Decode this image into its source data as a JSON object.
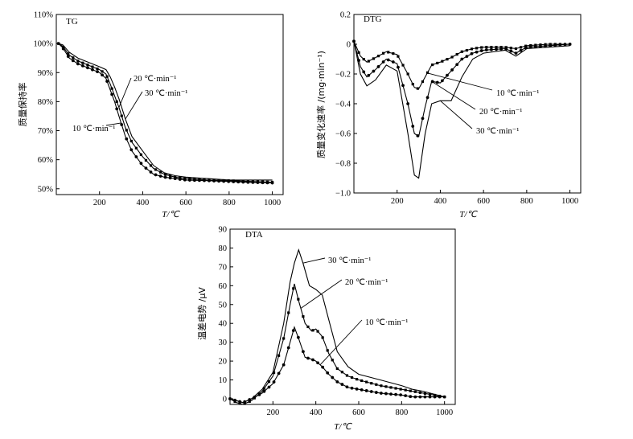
{
  "chart_data": [
    {
      "id": "tg",
      "type": "line",
      "title": "TG",
      "xlabel": "T/℃",
      "ylabel": "质量保持率",
      "xlim": [
        0,
        1050
      ],
      "ylim": [
        48,
        110
      ],
      "xticks": [
        200,
        400,
        600,
        800,
        1000
      ],
      "xtick_labels": [
        "200",
        "400",
        "600",
        "800",
        "1000"
      ],
      "yticks": [
        50,
        60,
        70,
        80,
        90,
        100,
        110
      ],
      "ytick_labels": [
        "50%",
        "60%",
        "70%",
        "80%",
        "90%",
        "100%",
        "110%"
      ],
      "series": [
        {
          "name": "10 ℃·min⁻¹",
          "marker": "circle",
          "x": [
            10,
            30,
            60,
            100,
            150,
            200,
            230,
            250,
            270,
            290,
            320,
            350,
            400,
            450,
            500,
            550,
            600,
            700,
            800,
            900,
            1000
          ],
          "y": [
            100,
            98.5,
            95,
            93,
            91.5,
            90,
            88,
            84,
            80,
            75,
            68,
            63,
            58,
            55,
            54,
            53.5,
            53,
            52.8,
            52.5,
            52.2,
            52
          ]
        },
        {
          "name": "20 ℃·min⁻¹",
          "marker": "square",
          "x": [
            10,
            30,
            60,
            100,
            150,
            200,
            230,
            250,
            270,
            290,
            320,
            350,
            400,
            450,
            500,
            550,
            600,
            700,
            800,
            900,
            1000
          ],
          "y": [
            100,
            99,
            96,
            94,
            92.5,
            91,
            89.5,
            86,
            82,
            78,
            71,
            66,
            61,
            57,
            55,
            54,
            53.5,
            53,
            52.8,
            52.5,
            52.3
          ]
        },
        {
          "name": "30 ℃·min⁻¹",
          "marker": "none",
          "x": [
            10,
            30,
            60,
            100,
            150,
            200,
            230,
            250,
            270,
            290,
            320,
            350,
            400,
            450,
            500,
            550,
            600,
            700,
            800,
            900,
            1000
          ],
          "y": [
            100,
            99.5,
            97,
            95,
            93.5,
            92,
            91,
            88.5,
            85,
            81,
            74,
            68,
            63,
            58,
            55.5,
            54.5,
            54,
            53.5,
            53,
            53,
            53
          ]
        }
      ],
      "annotations": [
        {
          "text": "20 ℃·min⁻¹",
          "series": "20 ℃·min⁻¹",
          "x": 290
        },
        {
          "text": "30 ℃·min⁻¹",
          "series": "30 ℃·min⁻¹",
          "x": 320
        },
        {
          "text": "10 ℃·min⁻¹",
          "series": "10 ℃·min⁻¹",
          "x": 300
        }
      ]
    },
    {
      "id": "dtg",
      "type": "line",
      "title": "DTG",
      "xlabel": "T/℃",
      "ylabel": "质量变化速率 /(mg·min⁻¹)",
      "xlim": [
        0,
        1050
      ],
      "ylim": [
        -1.0,
        0.2
      ],
      "xticks": [
        200,
        400,
        600,
        800,
        1000
      ],
      "xtick_labels": [
        "200",
        "400",
        "600",
        "800",
        "1000"
      ],
      "yticks": [
        -1.0,
        -0.8,
        -0.6,
        -0.4,
        -0.2,
        0,
        0.2
      ],
      "ytick_labels": [
        "−1.0",
        "−0.8",
        "−0.6",
        "−0.4",
        "−0.2",
        "0",
        "0.2"
      ],
      "series": [
        {
          "name": "10 ℃·min⁻¹",
          "marker": "square",
          "x": [
            0,
            30,
            60,
            100,
            150,
            200,
            250,
            280,
            300,
            330,
            360,
            400,
            450,
            500,
            550,
            600,
            700,
            750,
            800,
            900,
            1000
          ],
          "y": [
            0.02,
            -0.08,
            -0.12,
            -0.09,
            -0.05,
            -0.07,
            -0.2,
            -0.29,
            -0.3,
            -0.22,
            -0.14,
            -0.12,
            -0.09,
            -0.05,
            -0.03,
            -0.02,
            -0.02,
            -0.03,
            -0.01,
            0,
            0
          ]
        },
        {
          "name": "20 ℃·min⁻¹",
          "marker": "circle",
          "x": [
            0,
            30,
            60,
            100,
            150,
            200,
            250,
            280,
            300,
            330,
            360,
            400,
            450,
            500,
            550,
            600,
            700,
            750,
            800,
            900,
            1000
          ],
          "y": [
            0.02,
            -0.15,
            -0.22,
            -0.17,
            -0.1,
            -0.13,
            -0.4,
            -0.6,
            -0.62,
            -0.42,
            -0.25,
            -0.26,
            -0.18,
            -0.1,
            -0.06,
            -0.04,
            -0.03,
            -0.06,
            -0.02,
            -0.01,
            0
          ]
        },
        {
          "name": "30 ℃·min⁻¹",
          "marker": "none",
          "x": [
            0,
            30,
            60,
            100,
            150,
            200,
            250,
            280,
            300,
            330,
            360,
            400,
            450,
            500,
            550,
            600,
            700,
            750,
            800,
            900,
            1000
          ],
          "y": [
            0.02,
            -0.2,
            -0.28,
            -0.24,
            -0.14,
            -0.18,
            -0.6,
            -0.88,
            -0.9,
            -0.6,
            -0.4,
            -0.38,
            -0.38,
            -0.22,
            -0.1,
            -0.06,
            -0.04,
            -0.08,
            -0.03,
            -0.02,
            -0.01
          ]
        }
      ],
      "annotations": [
        {
          "text": "10 ℃·min⁻¹",
          "series": "10 ℃·min⁻¹",
          "x": 340
        },
        {
          "text": "20 ℃·min⁻¹",
          "series": "20 ℃·min⁻¹",
          "x": 360
        },
        {
          "text": "30 ℃·min⁻¹",
          "series": "30 ℃·min⁻¹",
          "x": 400
        }
      ]
    },
    {
      "id": "dta",
      "type": "line",
      "title": "DTA",
      "xlabel": "T/℃",
      "ylabel": "温差电势 /μV",
      "xlim": [
        0,
        1050
      ],
      "ylim": [
        -3,
        90
      ],
      "xticks": [
        200,
        400,
        600,
        800,
        1000
      ],
      "xtick_labels": [
        "200",
        "400",
        "600",
        "800",
        "1000"
      ],
      "yticks": [
        0,
        10,
        20,
        30,
        40,
        50,
        60,
        70,
        80,
        90
      ],
      "ytick_labels": [
        "0",
        "10",
        "20",
        "30",
        "40",
        "50",
        "60",
        "70",
        "80",
        "90"
      ],
      "series": [
        {
          "name": "10 ℃·min⁻¹",
          "marker": "circle",
          "x": [
            0,
            30,
            60,
            100,
            150,
            200,
            250,
            280,
            300,
            320,
            350,
            380,
            400,
            430,
            460,
            500,
            550,
            600,
            700,
            800,
            850,
            900,
            1000
          ],
          "y": [
            0,
            -1,
            -2,
            0,
            3,
            8,
            18,
            30,
            38,
            32,
            22,
            21,
            20,
            17,
            13,
            9,
            6,
            5,
            3,
            2,
            1,
            1,
            1
          ]
        },
        {
          "name": "20 ℃·min⁻¹",
          "marker": "square",
          "x": [
            0,
            30,
            60,
            100,
            150,
            200,
            250,
            280,
            300,
            320,
            350,
            380,
            400,
            430,
            460,
            500,
            550,
            600,
            700,
            800,
            850,
            900,
            1000
          ],
          "y": [
            0,
            -2,
            -3,
            -1,
            4,
            12,
            32,
            50,
            61,
            52,
            40,
            36,
            37,
            33,
            24,
            16,
            12,
            10,
            7,
            5,
            4,
            3,
            1
          ]
        },
        {
          "name": "30 ℃·min⁻¹",
          "marker": "none",
          "x": [
            0,
            30,
            60,
            100,
            150,
            200,
            250,
            280,
            300,
            320,
            340,
            370,
            400,
            430,
            460,
            500,
            550,
            600,
            700,
            800,
            850,
            900,
            1000
          ],
          "y": [
            0,
            -1,
            -2,
            0,
            5,
            14,
            40,
            62,
            72,
            79,
            72,
            60,
            58,
            55,
            42,
            25,
            17,
            13,
            10,
            7,
            5,
            4,
            1
          ]
        }
      ],
      "annotations": [
        {
          "text": "30 ℃·min⁻¹",
          "series": "30 ℃·min⁻¹",
          "x": 340
        },
        {
          "text": "20 ℃·min⁻¹",
          "series": "20 ℃·min⁻¹",
          "x": 330
        },
        {
          "text": "10 ℃·min⁻¹",
          "series": "10 ℃·min⁻¹",
          "x": 420
        }
      ]
    }
  ]
}
